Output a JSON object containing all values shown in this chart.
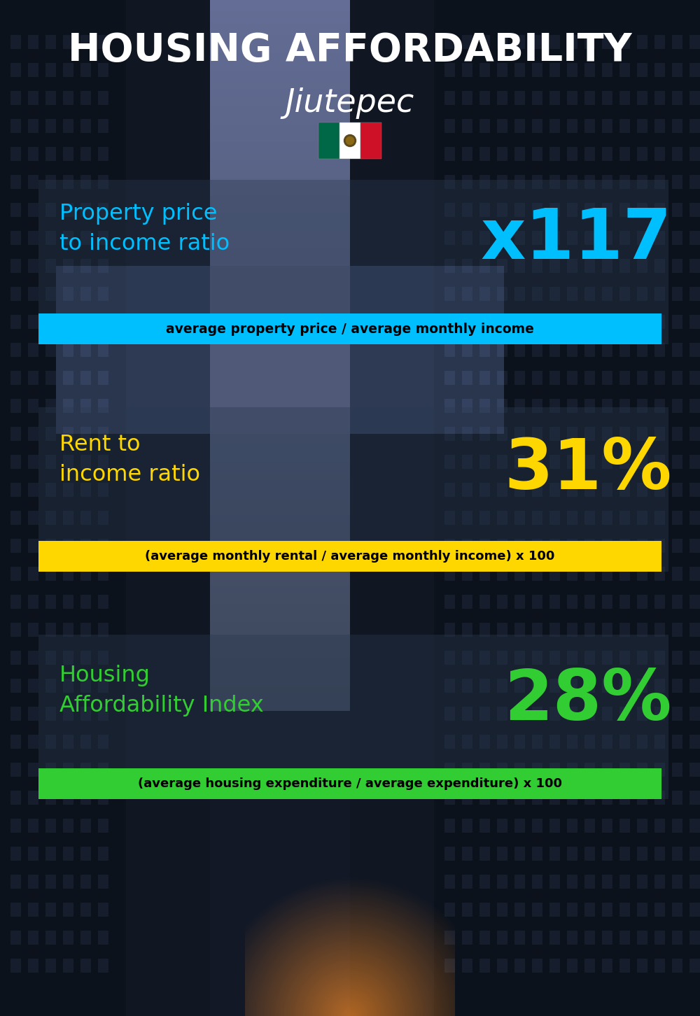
{
  "title_line1": "HOUSING AFFORDABILITY",
  "title_line2": "Jiutepec",
  "bg_color": "#111820",
  "section1_label": "Property price\nto income ratio",
  "section1_value": "x117",
  "section1_label_color": "#00BFFF",
  "section1_value_color": "#00BFFF",
  "section1_formula": "average property price / average monthly income",
  "section1_formula_bg": "#00BFFF",
  "section2_label": "Rent to\nincome ratio",
  "section2_value": "31%",
  "section2_label_color": "#FFD700",
  "section2_value_color": "#FFD700",
  "section2_formula": "(average monthly rental / average monthly income) x 100",
  "section2_formula_bg": "#FFD700",
  "section3_label": "Housing\nAffordability Index",
  "section3_value": "28%",
  "section3_label_color": "#32CD32",
  "section3_value_color": "#32CD32",
  "section3_formula": "(average housing expenditure / average expenditure) x 100",
  "section3_formula_bg": "#32CD32",
  "panel_alpha": 0.38,
  "panel_color": "#2a3a50"
}
